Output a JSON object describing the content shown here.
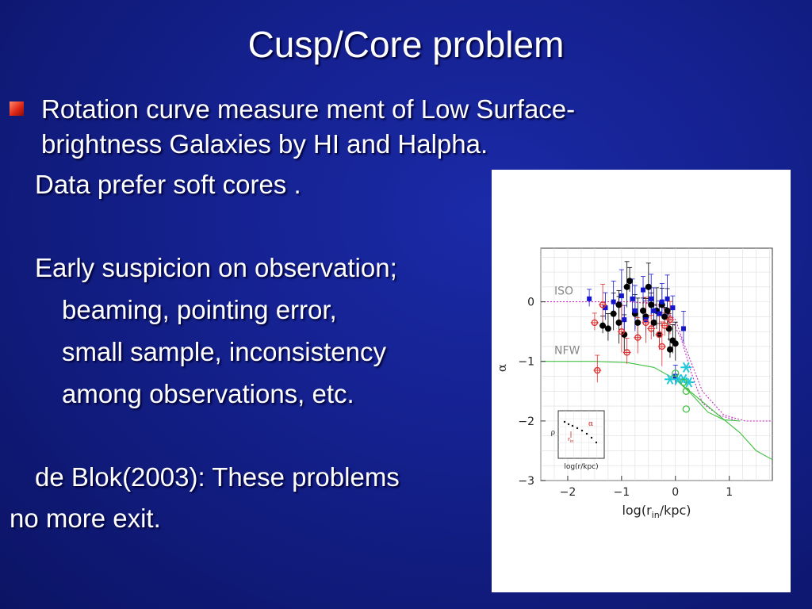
{
  "slide": {
    "title": "Cusp/Core problem",
    "bullet_line1": "Rotation curve measure ment  of Low Surface-",
    "bullet_line2": "brightness Galaxies by HI and Halpha.",
    "data_prefer": "Data prefer soft cores .",
    "suspicion": "Early suspicion on observation;",
    "reason1": "beaming, pointing error,",
    "reason2": "small sample, inconsistency",
    "reason3": "among observations, etc.",
    "deblok1": "de Blok(2003): These problems",
    "deblok2": "no more exit."
  },
  "colors": {
    "background": "#14208c",
    "text": "#ffffff",
    "bullet": "#e02818",
    "black_points": "#000000",
    "blue_points": "#1515d0",
    "red_points": "#e03030",
    "cyan_points": "#20c8d8",
    "green_points": "#40c040",
    "iso_curve": "#c030c0",
    "nfw_curve": "#40c040"
  },
  "chart_data": {
    "type": "scatter",
    "xlabel": "log(r",
    "xlabel_sub": "in",
    "xlabel_end": "/kpc)",
    "ylabel": "α",
    "xlim": [
      -2.5,
      1.8
    ],
    "ylim": [
      -3.0,
      0.9
    ],
    "xticks": [
      -2,
      -1,
      0,
      1
    ],
    "xtick_labels": [
      "−2",
      "−1",
      "0",
      "1"
    ],
    "yticks": [
      0,
      -1,
      -2,
      -3
    ],
    "ytick_labels": [
      "0",
      "−1",
      "−2",
      "−3"
    ],
    "annotations": [
      {
        "text": "ISO",
        "x": -2.25,
        "y": 0.12
      },
      {
        "text": "NFW",
        "x": -2.25,
        "y": -0.88
      }
    ],
    "guide_lines": [
      {
        "name": "ISO",
        "style": "dotted",
        "points": [
          [
            -2.5,
            0
          ],
          [
            -0.8,
            0
          ],
          [
            -0.3,
            -0.05
          ],
          [
            0.0,
            -0.3
          ],
          [
            0.2,
            -0.8
          ],
          [
            0.5,
            -1.5
          ],
          [
            0.9,
            -1.9
          ],
          [
            1.3,
            -2.0
          ],
          [
            1.8,
            -2.0
          ]
        ]
      },
      {
        "name": "ISO",
        "style": "dotted",
        "points": [
          [
            -0.6,
            0
          ],
          [
            -0.2,
            -0.1
          ],
          [
            0.1,
            -0.6
          ],
          [
            0.3,
            -1.2
          ],
          [
            0.5,
            -1.7
          ],
          [
            0.8,
            -1.9
          ],
          [
            1.1,
            -1.98
          ]
        ]
      },
      {
        "name": "NFW",
        "style": "solid",
        "points": [
          [
            -2.5,
            -1.0
          ],
          [
            -1.5,
            -1.0
          ],
          [
            -0.9,
            -1.02
          ],
          [
            -0.4,
            -1.1
          ],
          [
            0.0,
            -1.3
          ],
          [
            0.4,
            -1.6
          ],
          [
            0.8,
            -1.9
          ],
          [
            1.2,
            -2.2
          ],
          [
            1.5,
            -2.5
          ],
          [
            1.8,
            -2.65
          ]
        ]
      },
      {
        "name": "NFW",
        "style": "solid",
        "points": [
          [
            0.0,
            -1.3
          ],
          [
            0.3,
            -1.55
          ],
          [
            0.6,
            -1.85
          ],
          [
            0.9,
            -1.98
          ],
          [
            1.2,
            -2.0
          ]
        ]
      }
    ],
    "series": [
      {
        "color": "black",
        "marker": "circle",
        "points": [
          [
            -1.35,
            -0.4
          ],
          [
            -1.25,
            -0.45
          ],
          [
            -1.15,
            -0.2
          ],
          [
            -1.05,
            -0.35
          ],
          [
            -1.05,
            -0.05
          ],
          [
            -0.95,
            -0.55
          ],
          [
            -0.9,
            0.25
          ],
          [
            -0.85,
            0.35
          ],
          [
            -0.75,
            -0.2
          ],
          [
            -0.7,
            -0.35
          ],
          [
            -0.6,
            -0.15
          ],
          [
            -0.55,
            -0.25
          ],
          [
            -0.5,
            0.25
          ],
          [
            -0.45,
            -0.05
          ],
          [
            -0.4,
            -0.35
          ],
          [
            -0.35,
            -0.15
          ],
          [
            -0.3,
            -0.55
          ],
          [
            -0.25,
            -0.05
          ],
          [
            -0.15,
            -0.15
          ],
          [
            -0.1,
            -0.8
          ],
          [
            -0.05,
            -0.65
          ],
          [
            0.0,
            -0.7
          ],
          [
            -0.2,
            -0.25
          ],
          [
            -0.12,
            -0.45
          ]
        ]
      },
      {
        "color": "blue",
        "marker": "square",
        "points": [
          [
            -1.6,
            0.05
          ],
          [
            -1.3,
            -0.1
          ],
          [
            -1.15,
            0.0
          ],
          [
            -1.0,
            0.1
          ],
          [
            -0.95,
            -0.3
          ],
          [
            -0.8,
            0.05
          ],
          [
            -0.75,
            -0.15
          ],
          [
            -0.6,
            0.2
          ],
          [
            -0.55,
            -0.3
          ],
          [
            -0.45,
            0.05
          ],
          [
            -0.3,
            -0.2
          ],
          [
            -0.25,
            0.0
          ],
          [
            -0.15,
            0.05
          ],
          [
            -0.05,
            -0.1
          ],
          [
            0.15,
            -0.45
          ],
          [
            -0.4,
            -0.15
          ],
          [
            0.0,
            -1.25
          ]
        ]
      },
      {
        "color": "red",
        "marker": "star",
        "points": [
          [
            -1.5,
            -0.35
          ],
          [
            -1.45,
            -1.15
          ],
          [
            -1.35,
            -0.05
          ],
          [
            -1.0,
            -0.5
          ],
          [
            -0.9,
            -0.85
          ],
          [
            -0.7,
            -0.6
          ],
          [
            -0.55,
            -0.35
          ],
          [
            -0.45,
            -0.45
          ],
          [
            -0.3,
            -0.55
          ],
          [
            -0.25,
            -0.75
          ],
          [
            -0.2,
            -0.4
          ],
          [
            -0.1,
            -0.3
          ]
        ]
      },
      {
        "color": "cyan",
        "marker": "asterisk",
        "points": [
          [
            -0.1,
            -1.3
          ],
          [
            0.05,
            -1.3
          ],
          [
            0.15,
            -1.3
          ],
          [
            0.2,
            -1.1
          ],
          [
            0.25,
            -1.35
          ]
        ]
      },
      {
        "color": "green",
        "marker": "circle-open",
        "points": [
          [
            0.0,
            -1.2
          ],
          [
            0.15,
            -1.35
          ],
          [
            0.2,
            -1.5
          ],
          [
            0.2,
            -1.8
          ]
        ]
      }
    ],
    "inset": {
      "ylabel": "ρ",
      "xlabel": "log(r/kpc)",
      "alpha_label": "α",
      "r_label": "r",
      "r_sub": "in"
    }
  }
}
